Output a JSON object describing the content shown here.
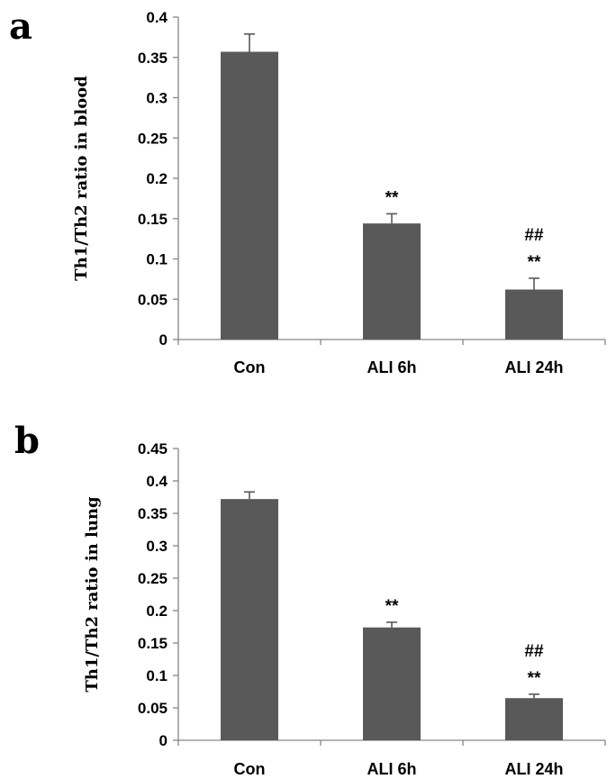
{
  "panels": [
    {
      "label": "a",
      "chart_data": {
        "type": "bar",
        "categories": [
          "Con",
          "ALI 6h",
          "ALI 24h"
        ],
        "values": [
          0.357,
          0.144,
          0.062
        ],
        "errors": [
          0.022,
          0.012,
          0.014
        ],
        "annotations": [
          [],
          [
            "**"
          ],
          [
            "##",
            "**"
          ]
        ],
        "ylabel": "Th1/Th2 ratio in blood",
        "xlabel": "",
        "ylim": [
          0,
          0.4
        ],
        "yticks": [
          "0",
          "0.05",
          "0.1",
          "0.15",
          "0.2",
          "0.25",
          "0.3",
          "0.35",
          "0.4"
        ],
        "grid": false,
        "bar_color": "#595959"
      }
    },
    {
      "label": "b",
      "chart_data": {
        "type": "bar",
        "categories": [
          "Con",
          "ALI 6h",
          "ALI 24h"
        ],
        "values": [
          0.372,
          0.174,
          0.065
        ],
        "errors": [
          0.011,
          0.008,
          0.006
        ],
        "annotations": [
          [],
          [
            "**"
          ],
          [
            "##",
            "**"
          ]
        ],
        "ylabel": "Th1/Th2 ratio in lung",
        "xlabel": "",
        "ylim": [
          0,
          0.45
        ],
        "yticks": [
          "0",
          "0.05",
          "0.1",
          "0.15",
          "0.2",
          "0.25",
          "0.3",
          "0.35",
          "0.4",
          "0.45"
        ],
        "grid": false,
        "bar_color": "#595959"
      }
    }
  ]
}
